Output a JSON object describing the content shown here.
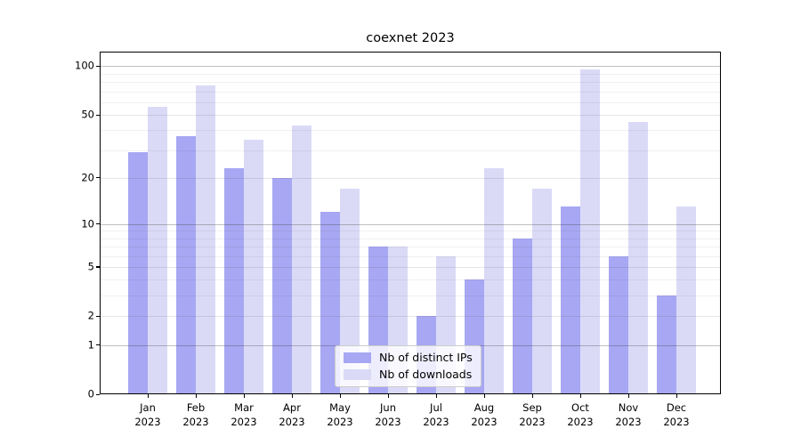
{
  "title": "coexnet 2023",
  "chart_data": {
    "type": "bar",
    "title": "coexnet 2023",
    "categories": [
      "Jan 2023",
      "Feb 2023",
      "Mar 2023",
      "Apr 2023",
      "May 2023",
      "Jun 2023",
      "Jul 2023",
      "Aug 2023",
      "Sep 2023",
      "Oct 2023",
      "Nov 2023",
      "Dec 2023"
    ],
    "series": [
      {
        "name": "Nb of distinct IPs",
        "color": "#a7a7f3",
        "values": [
          29,
          37,
          23,
          20,
          12,
          7,
          2,
          4,
          8,
          13,
          6,
          3
        ]
      },
      {
        "name": "Nb of downloads",
        "color": "#dadaf7",
        "values": [
          56,
          76,
          35,
          43,
          17,
          7,
          6,
          23,
          17,
          96,
          45,
          13
        ]
      }
    ],
    "xlabel": "",
    "ylabel": "",
    "yscale": "log1p",
    "ylim": [
      0,
      124
    ],
    "yticks": [
      0,
      1,
      2,
      5,
      10,
      20,
      50,
      100
    ],
    "gridlines": {
      "major": [
        1,
        10,
        100
      ],
      "mid": [
        2,
        5,
        20,
        50
      ],
      "minor": [
        3,
        4,
        6,
        7,
        8,
        9,
        30,
        40,
        60,
        70,
        80,
        90
      ]
    },
    "grid": true,
    "legend_position": "lower center"
  }
}
